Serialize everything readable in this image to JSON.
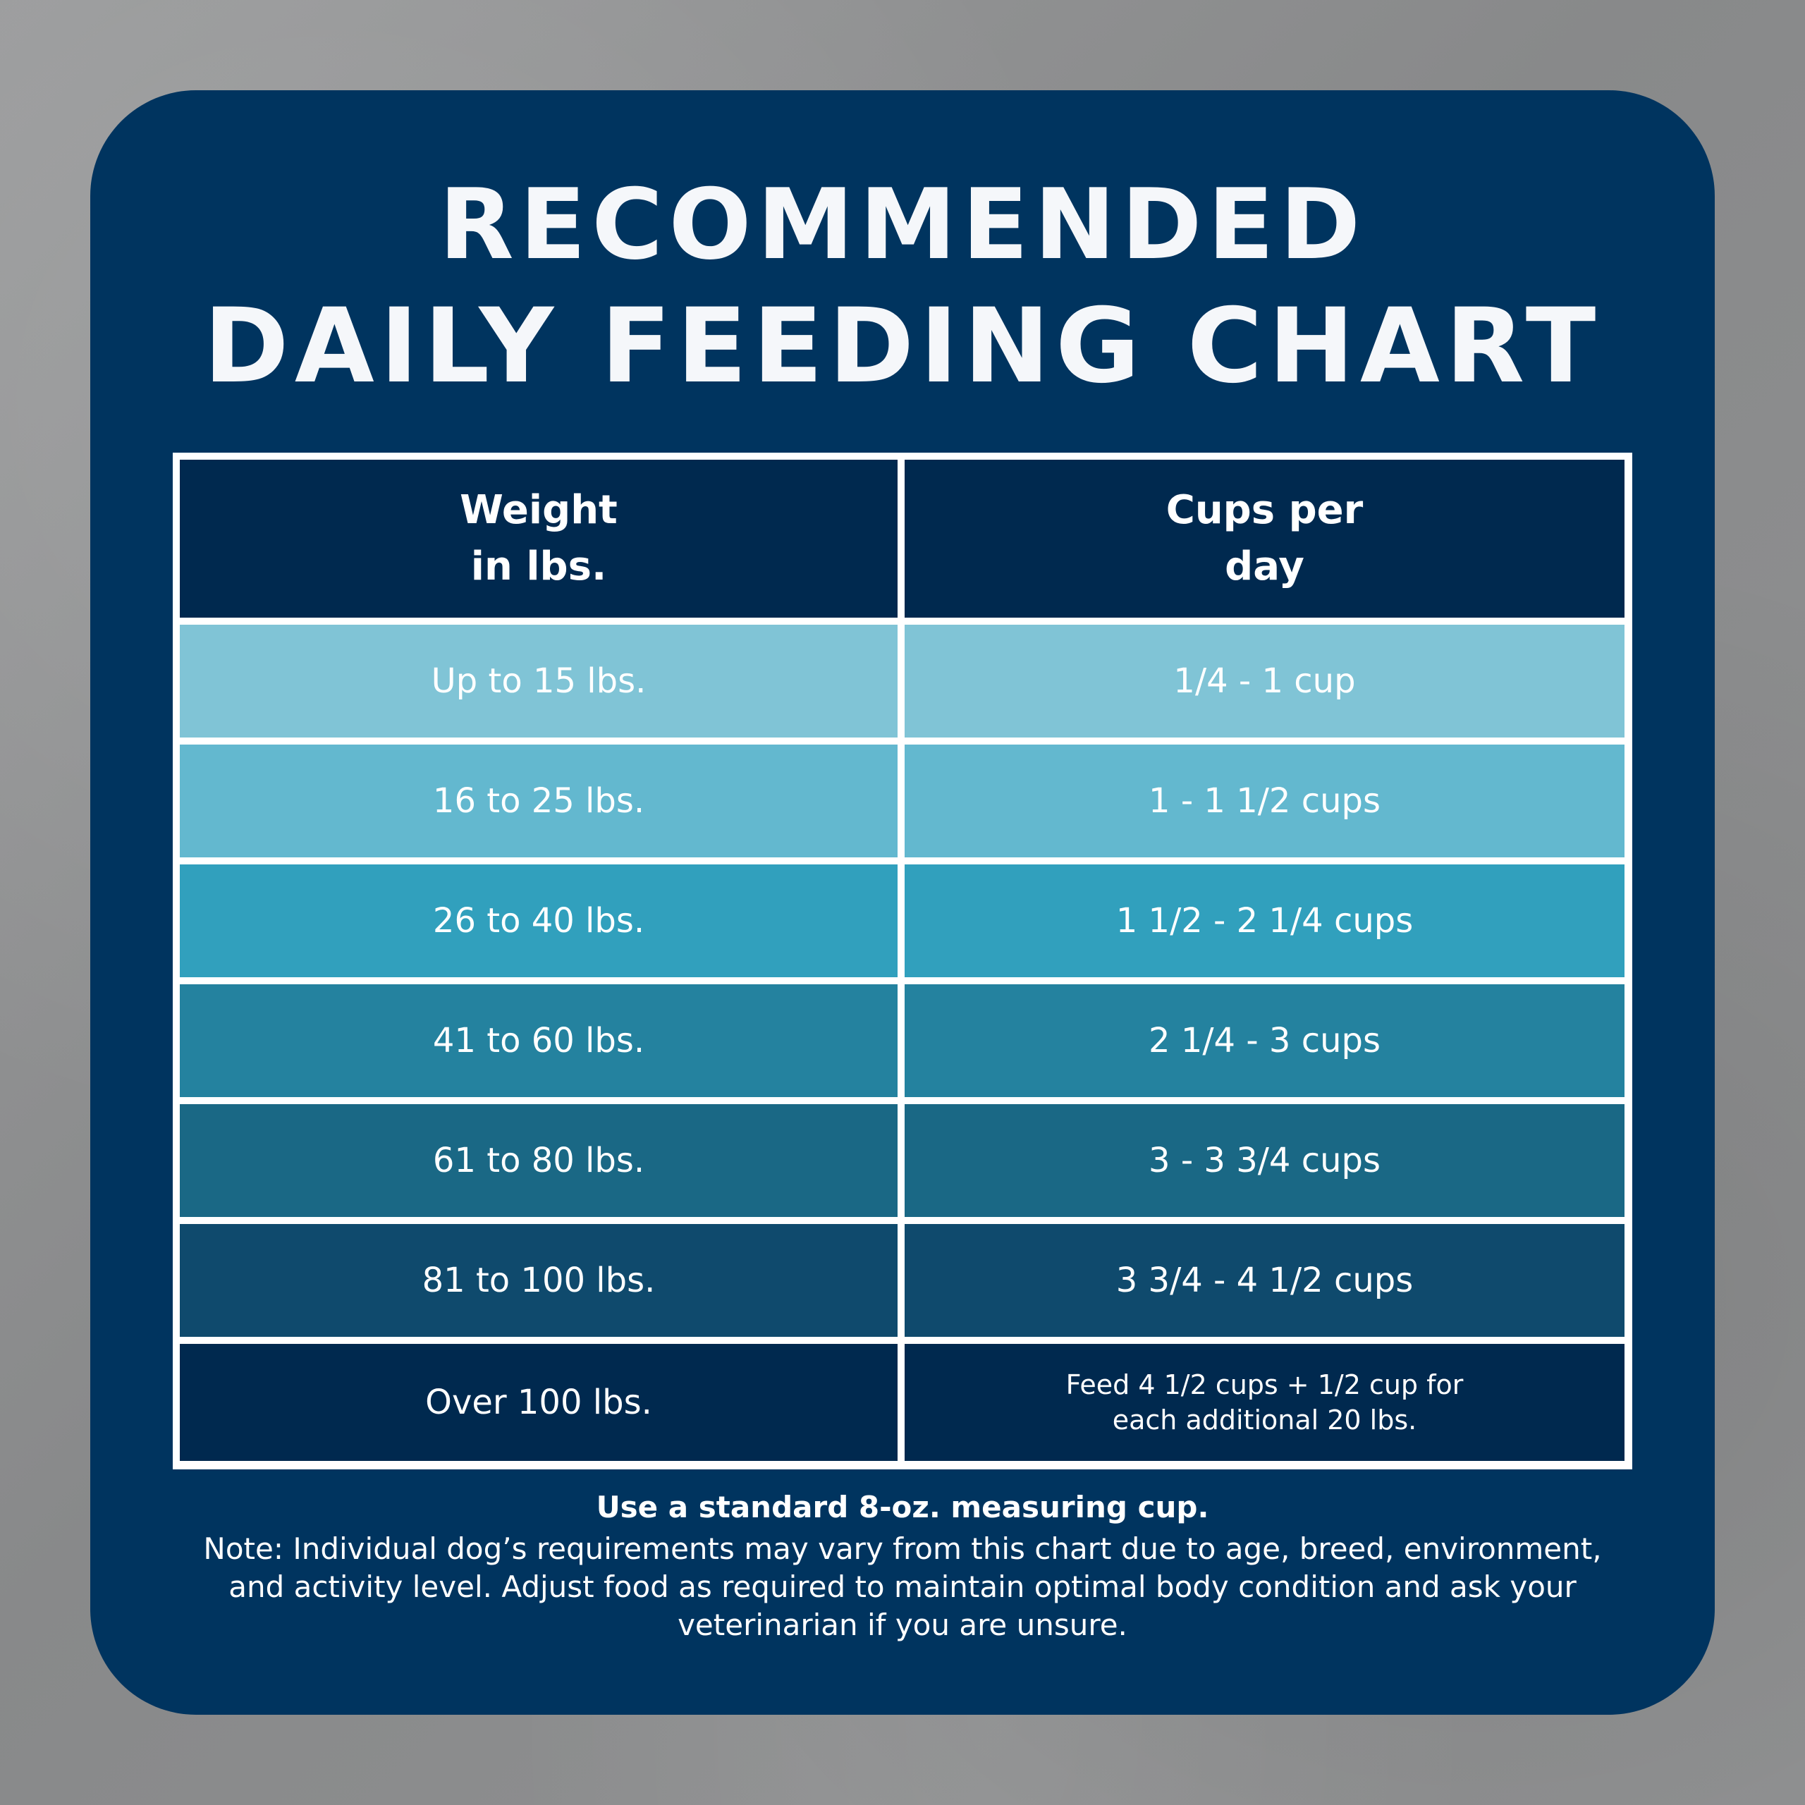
{
  "title": {
    "line1": "RECOMMENDED",
    "line2": "DAILY FEEDING CHART"
  },
  "table": {
    "headers": [
      "Weight in lbs.",
      "Cups per day"
    ],
    "header_lines": [
      [
        "Weight",
        "in lbs."
      ],
      [
        "Cups per",
        "day"
      ]
    ],
    "rows": [
      {
        "weight": "Up to 15 lbs.",
        "cups": "1/4 - 1 cup",
        "color": "#80c4d6"
      },
      {
        "weight": "16 to 25 lbs.",
        "cups": "1 - 1 1/2 cups",
        "color": "#63b8cf"
      },
      {
        "weight": "26 to 40 lbs.",
        "cups": "1 1/2 - 2 1/4 cups",
        "color": "#31a0bd"
      },
      {
        "weight": "41 to 60 lbs.",
        "cups": "2 1/4 - 3 cups",
        "color": "#24829f"
      },
      {
        "weight": "61 to 80 lbs.",
        "cups": "3 - 3 3/4 cups",
        "color": "#1a6885"
      },
      {
        "weight": "81 to 100 lbs.",
        "cups": "3 3/4 - 4 1/2 cups",
        "color": "#0f4a6d"
      },
      {
        "weight": "Over 100 lbs.",
        "cups_lines": [
          "Feed 4 1/2 cups + 1/2 cup for",
          "each additional 20 lbs."
        ],
        "color": "#00294f"
      }
    ]
  },
  "footer": {
    "strong": "Use a standard 8-oz. measuring cup.",
    "note_lines": [
      "Note: Individual dog’s requirements may vary from this chart due to age, breed, environment,",
      "and activity level. Adjust food as required to maintain optimal body condition and ask your",
      "veterinarian if you are unsure."
    ]
  },
  "colors": {
    "card": "#00345f",
    "header_bg": "#00294f",
    "grid_lines": "#ffffff",
    "background": "#8f9091"
  }
}
